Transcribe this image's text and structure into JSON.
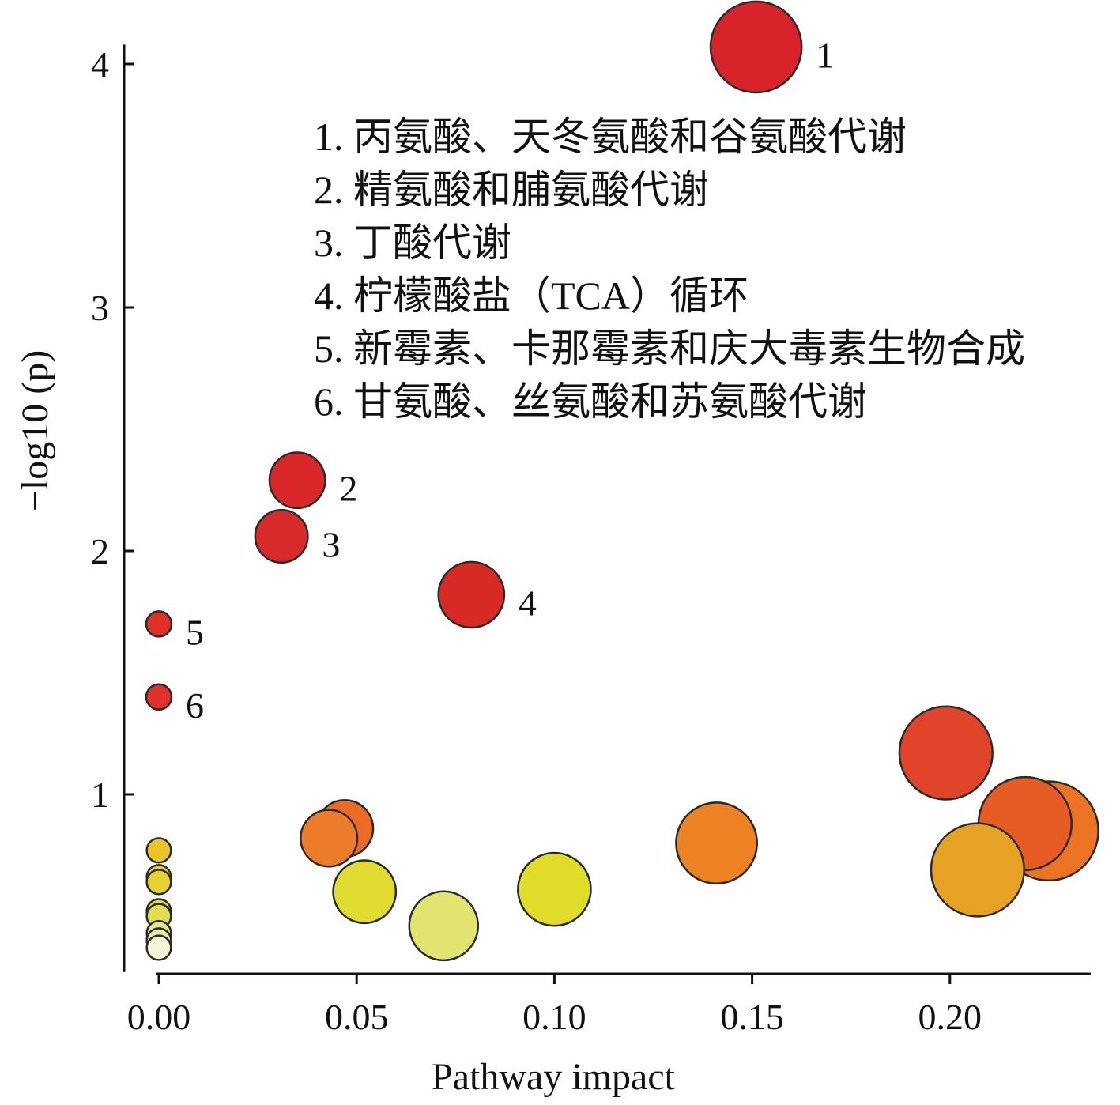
{
  "chart_data": {
    "type": "scatter",
    "title": "",
    "xlabel": "Pathway impact",
    "ylabel": "−log10 (p)",
    "xlim": [
      0,
      0.235
    ],
    "ylim": [
      0.27,
      4.2
    ],
    "x_ticks": [
      0.0,
      0.05,
      0.1,
      0.15,
      0.2
    ],
    "x_tick_labels": [
      "0.00",
      "0.05",
      "0.10",
      "0.15",
      "0.20"
    ],
    "y_ticks": [
      1,
      2,
      3,
      4
    ],
    "y_tick_labels": [
      "1",
      "2",
      "3",
      "4"
    ],
    "points": [
      {
        "x": 0.151,
        "y": 4.07,
        "r": 0.9,
        "color": "#d8232a",
        "label": "1"
      },
      {
        "x": 0.035,
        "y": 2.29,
        "r": 0.55,
        "color": "#d8282a",
        "label": "2"
      },
      {
        "x": 0.031,
        "y": 2.06,
        "r": 0.52,
        "color": "#d82a2a",
        "label": "3"
      },
      {
        "x": 0.079,
        "y": 1.82,
        "r": 0.65,
        "color": "#d82a24",
        "label": "4"
      },
      {
        "x": 0.0,
        "y": 1.7,
        "r": 0.25,
        "color": "#e0302a",
        "label": "5"
      },
      {
        "x": 0.0,
        "y": 1.4,
        "r": 0.25,
        "color": "#e0322a",
        "label": "6"
      },
      {
        "x": 0.199,
        "y": 1.17,
        "r": 0.92,
        "color": "#e0442a",
        "label": ""
      },
      {
        "x": 0.219,
        "y": 0.88,
        "r": 0.92,
        "color": "#e65c24",
        "label": ""
      },
      {
        "x": 0.225,
        "y": 0.85,
        "r": 0.98,
        "color": "#ec7424",
        "label": ""
      },
      {
        "x": 0.207,
        "y": 0.69,
        "r": 0.92,
        "color": "#e6a224",
        "label": ""
      },
      {
        "x": 0.141,
        "y": 0.8,
        "r": 0.8,
        "color": "#ec8224",
        "label": ""
      },
      {
        "x": 0.047,
        "y": 0.86,
        "r": 0.56,
        "color": "#ec6a24",
        "label": ""
      },
      {
        "x": 0.043,
        "y": 0.82,
        "r": 0.56,
        "color": "#ec7c2a",
        "label": ""
      },
      {
        "x": 0.052,
        "y": 0.6,
        "r": 0.62,
        "color": "#e0dc32",
        "label": ""
      },
      {
        "x": 0.1,
        "y": 0.61,
        "r": 0.72,
        "color": "#e0dc2a",
        "label": ""
      },
      {
        "x": 0.072,
        "y": 0.46,
        "r": 0.68,
        "color": "#e2e470",
        "label": ""
      },
      {
        "x": 0.0,
        "y": 0.77,
        "r": 0.24,
        "color": "#ecc42a",
        "label": ""
      },
      {
        "x": 0.0,
        "y": 0.66,
        "r": 0.24,
        "color": "#e8cf2c",
        "label": ""
      },
      {
        "x": 0.0,
        "y": 0.64,
        "r": 0.24,
        "color": "#e6d230",
        "label": ""
      },
      {
        "x": 0.0,
        "y": 0.52,
        "r": 0.24,
        "color": "#dedc36",
        "label": ""
      },
      {
        "x": 0.0,
        "y": 0.5,
        "r": 0.24,
        "color": "#e0df50",
        "label": ""
      },
      {
        "x": 0.0,
        "y": 0.43,
        "r": 0.24,
        "color": "#e6e88a",
        "label": ""
      },
      {
        "x": 0.0,
        "y": 0.4,
        "r": 0.24,
        "color": "#eaedb0",
        "label": ""
      },
      {
        "x": 0.0,
        "y": 0.37,
        "r": 0.24,
        "color": "#f2f4d4",
        "label": ""
      }
    ],
    "annotations": [
      "1. 丙氨酸、天冬氨酸和谷氨酸代谢",
      "2. 精氨酸和脯氨酸代谢",
      "3. 丁酸代谢",
      "4. 柠檬酸盐（TCA）循环",
      "5. 新霉素、卡那霉素和庆大毒素生物合成",
      "6. 甘氨酸、丝氨酸和苏氨酸代谢"
    ]
  }
}
